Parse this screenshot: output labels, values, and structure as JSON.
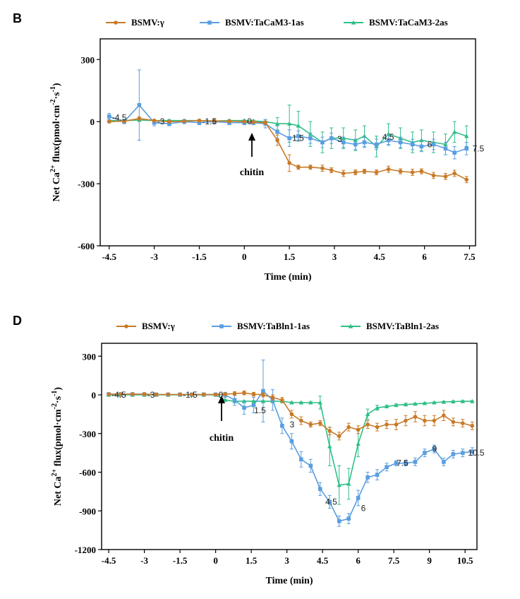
{
  "colors": {
    "orange": "#c87a28",
    "blue": "#5a9ee0",
    "green": "#2fbf85"
  },
  "panels": [
    {
      "letter": "B",
      "annotation": {
        "text": "chitin",
        "x": 0
      },
      "chart_data": {
        "type": "line",
        "xlabel": "Time (min)",
        "ylabel": "Net Ca2+ flux(pmol·cm-2·s-1)",
        "xlim": [
          -4.8,
          7.7
        ],
        "ylim": [
          -600,
          400
        ],
        "xticks": [
          -4.5,
          -3,
          -1.5,
          0,
          1.5,
          3,
          4.5,
          6,
          7.5
        ],
        "yticks": [
          300,
          0,
          -300,
          -600
        ],
        "legend": "top",
        "series": [
          {
            "name": "BSMV:γ",
            "color": "orange",
            "marker": "circle",
            "x": [
              -4.5,
              -4.0,
              -3.5,
              -3.0,
              -2.5,
              -2.0,
              -1.5,
              -1.0,
              -0.5,
              0.0,
              0.3,
              0.7,
              1.1,
              1.5,
              1.8,
              2.2,
              2.6,
              2.9,
              3.3,
              3.7,
              4.0,
              4.4,
              4.8,
              5.2,
              5.6,
              5.9,
              6.3,
              6.7,
              7.0,
              7.4
            ],
            "y": [
              0,
              2,
              15,
              5,
              0,
              2,
              5,
              3,
              2,
              0,
              -2,
              -5,
              -90,
              -200,
              -220,
              -220,
              -225,
              -235,
              -250,
              -245,
              -240,
              -245,
              -230,
              -240,
              -245,
              -240,
              -260,
              -265,
              -250,
              -280
            ],
            "err": [
              5,
              5,
              8,
              5,
              5,
              5,
              5,
              5,
              5,
              5,
              5,
              8,
              25,
              40,
              10,
              10,
              15,
              12,
              15,
              12,
              10,
              12,
              15,
              12,
              15,
              12,
              15,
              15,
              15,
              15
            ]
          },
          {
            "name": "BSMV:TaCaM3-1as",
            "color": "blue",
            "marker": "square",
            "x": [
              -4.5,
              -4.0,
              -3.5,
              -3.0,
              -2.5,
              -2.0,
              -1.5,
              -1.0,
              -0.5,
              0.0,
              0.3,
              0.7,
              1.1,
              1.5,
              1.8,
              2.2,
              2.6,
              2.9,
              3.3,
              3.7,
              4.0,
              4.4,
              4.8,
              5.2,
              5.6,
              5.9,
              6.3,
              6.7,
              7.0,
              7.4
            ],
            "y": [
              25,
              0,
              80,
              -5,
              -10,
              0,
              -5,
              0,
              -5,
              -5,
              -5,
              -10,
              -50,
              -80,
              -70,
              -80,
              -100,
              -80,
              -100,
              -110,
              -100,
              -110,
              -90,
              -100,
              -110,
              -120,
              -110,
              -130,
              -150,
              -130
            ],
            "err": [
              15,
              10,
              170,
              15,
              10,
              10,
              10,
              10,
              10,
              10,
              10,
              20,
              30,
              40,
              25,
              25,
              25,
              25,
              25,
              25,
              25,
              25,
              25,
              25,
              25,
              25,
              25,
              30,
              30,
              30
            ]
          },
          {
            "name": "BSMV:TaCaM3-2as",
            "color": "green",
            "marker": "triangle",
            "x": [
              -4.5,
              -4.0,
              -3.5,
              -3.0,
              -2.5,
              -2.0,
              -1.5,
              -1.0,
              -0.5,
              0.0,
              0.3,
              0.7,
              1.1,
              1.5,
              1.8,
              2.2,
              2.6,
              2.9,
              3.3,
              3.7,
              4.0,
              4.4,
              4.8,
              5.2,
              5.6,
              5.9,
              6.3,
              6.7,
              7.0,
              7.4
            ],
            "y": [
              5,
              5,
              8,
              5,
              5,
              5,
              5,
              3,
              5,
              5,
              3,
              0,
              -10,
              -10,
              -20,
              -60,
              -100,
              -80,
              -80,
              -90,
              -70,
              -120,
              -60,
              -80,
              -100,
              -90,
              -100,
              -110,
              -50,
              -70
            ],
            "err": [
              5,
              5,
              5,
              5,
              5,
              5,
              5,
              5,
              5,
              5,
              5,
              10,
              30,
              90,
              70,
              60,
              50,
              50,
              50,
              50,
              50,
              50,
              50,
              50,
              50,
              50,
              50,
              50,
              50,
              50
            ]
          }
        ],
        "point_labels": [
          {
            "x": -4.5,
            "y": 20,
            "text": "-4.5"
          },
          {
            "x": -3.0,
            "y": 0,
            "text": "-3"
          },
          {
            "x": -1.5,
            "y": 0,
            "text": "-1.5"
          },
          {
            "x": 0.0,
            "y": 0,
            "text": "0"
          },
          {
            "x": 1.5,
            "y": -80,
            "text": "1.5"
          },
          {
            "x": 3.0,
            "y": -85,
            "text": "3"
          },
          {
            "x": 4.5,
            "y": -75,
            "text": "4.5"
          },
          {
            "x": 6.0,
            "y": -110,
            "text": "6"
          },
          {
            "x": 7.5,
            "y": -130,
            "text": "7.5"
          }
        ]
      }
    },
    {
      "letter": "D",
      "annotation": {
        "text": "chitin",
        "x": 0
      },
      "chart_data": {
        "type": "line",
        "xlabel": "Time (min)",
        "ylabel": "Net Ca2+ flux(pmol·cm-2·s-1)",
        "xlim": [
          -4.8,
          11.0
        ],
        "ylim": [
          -1200,
          400
        ],
        "xticks": [
          -4.5,
          -3,
          -1.5,
          0,
          1.5,
          3,
          4.5,
          6,
          7.5,
          9,
          10.5
        ],
        "yticks": [
          300,
          0,
          -300,
          -600,
          -900,
          -1200
        ],
        "legend": "top",
        "series": [
          {
            "name": "BSMV:γ",
            "color": "orange",
            "marker": "circle",
            "x": [
              -4.5,
              -4.0,
              -3.5,
              -3.0,
              -2.5,
              -2.0,
              -1.5,
              -1.0,
              -0.5,
              0.0,
              0.4,
              0.8,
              1.2,
              1.6,
              2.0,
              2.4,
              2.8,
              3.2,
              3.6,
              4.0,
              4.4,
              4.8,
              5.2,
              5.6,
              6.0,
              6.4,
              6.8,
              7.2,
              7.6,
              8.0,
              8.4,
              8.8,
              9.2,
              9.6,
              10.0,
              10.4,
              10.8
            ],
            "y": [
              5,
              5,
              5,
              5,
              2,
              3,
              3,
              2,
              3,
              2,
              5,
              10,
              15,
              5,
              0,
              -20,
              -40,
              -150,
              -200,
              -230,
              -220,
              -280,
              -320,
              -250,
              -270,
              -230,
              -250,
              -230,
              -230,
              -200,
              -170,
              -200,
              -200,
              -160,
              -210,
              -220,
              -240
            ],
            "err": [
              5,
              5,
              5,
              5,
              5,
              5,
              5,
              5,
              5,
              5,
              10,
              15,
              15,
              15,
              15,
              20,
              20,
              30,
              30,
              20,
              20,
              30,
              30,
              30,
              30,
              30,
              30,
              30,
              40,
              40,
              40,
              40,
              40,
              40,
              30,
              30,
              30
            ]
          },
          {
            "name": "BSMV:TaBln1-1as",
            "color": "blue",
            "marker": "square",
            "x": [
              -4.5,
              -4.0,
              -3.5,
              -3.0,
              -2.5,
              -2.0,
              -1.5,
              -1.0,
              -0.5,
              0.0,
              0.4,
              0.8,
              1.2,
              1.6,
              2.0,
              2.4,
              2.8,
              3.2,
              3.6,
              4.0,
              4.4,
              4.8,
              5.2,
              5.6,
              6.0,
              6.4,
              6.8,
              7.2,
              7.6,
              8.0,
              8.4,
              8.8,
              9.2,
              9.6,
              10.0,
              10.4,
              10.8
            ],
            "y": [
              5,
              5,
              5,
              5,
              3,
              3,
              3,
              3,
              3,
              3,
              0,
              -40,
              -100,
              -80,
              30,
              -40,
              -240,
              -360,
              -500,
              -550,
              -730,
              -830,
              -980,
              -960,
              -800,
              -640,
              -620,
              -560,
              -530,
              -530,
              -520,
              -450,
              -420,
              -520,
              -460,
              -450,
              -440
            ],
            "err": [
              5,
              5,
              5,
              5,
              5,
              5,
              5,
              5,
              5,
              5,
              20,
              40,
              50,
              60,
              240,
              80,
              60,
              60,
              60,
              50,
              50,
              50,
              40,
              40,
              60,
              40,
              40,
              30,
              20,
              20,
              30,
              30,
              30,
              30,
              30,
              30,
              30
            ]
          },
          {
            "name": "BSMV:TaBln1-2as",
            "color": "green",
            "marker": "triangle",
            "x": [
              -4.5,
              -4.0,
              -3.5,
              -3.0,
              -2.5,
              -2.0,
              -1.5,
              -1.0,
              -0.5,
              0.0,
              0.4,
              0.8,
              1.2,
              1.6,
              2.0,
              2.4,
              2.8,
              3.2,
              3.6,
              4.0,
              4.4,
              4.8,
              5.2,
              5.6,
              6.0,
              6.4,
              6.8,
              7.2,
              7.6,
              8.0,
              8.4,
              8.8,
              9.2,
              9.6,
              10.0,
              10.4,
              10.8
            ],
            "y": [
              0,
              0,
              0,
              0,
              0,
              0,
              0,
              0,
              0,
              0,
              -40,
              -50,
              -50,
              -50,
              -50,
              -50,
              -50,
              -60,
              -60,
              -60,
              -60,
              -400,
              -700,
              -690,
              -380,
              -150,
              -100,
              -90,
              -80,
              -75,
              -70,
              -65,
              -60,
              -55,
              -52,
              -50,
              -50
            ],
            "err": [
              3,
              3,
              3,
              3,
              3,
              3,
              3,
              3,
              3,
              3,
              5,
              5,
              5,
              5,
              5,
              5,
              5,
              5,
              5,
              5,
              50,
              150,
              150,
              120,
              100,
              40,
              20,
              10,
              10,
              10,
              5,
              5,
              5,
              5,
              5,
              5,
              5
            ]
          }
        ],
        "point_labels": [
          {
            "x": -4.5,
            "y": 0,
            "text": "-4.5"
          },
          {
            "x": -3.0,
            "y": 0,
            "text": "-3"
          },
          {
            "x": -1.5,
            "y": 0,
            "text": "-1.5"
          },
          {
            "x": 0.0,
            "y": 0,
            "text": "0"
          },
          {
            "x": 1.5,
            "y": -120,
            "text": "1.5"
          },
          {
            "x": 3.0,
            "y": -230,
            "text": "3"
          },
          {
            "x": 4.5,
            "y": -830,
            "text": "4.5"
          },
          {
            "x": 6.0,
            "y": -880,
            "text": "6"
          },
          {
            "x": 7.5,
            "y": -530,
            "text": "7.5"
          },
          {
            "x": 9.0,
            "y": -420,
            "text": "9"
          },
          {
            "x": 10.5,
            "y": -450,
            "text": "10.5"
          }
        ]
      }
    }
  ]
}
